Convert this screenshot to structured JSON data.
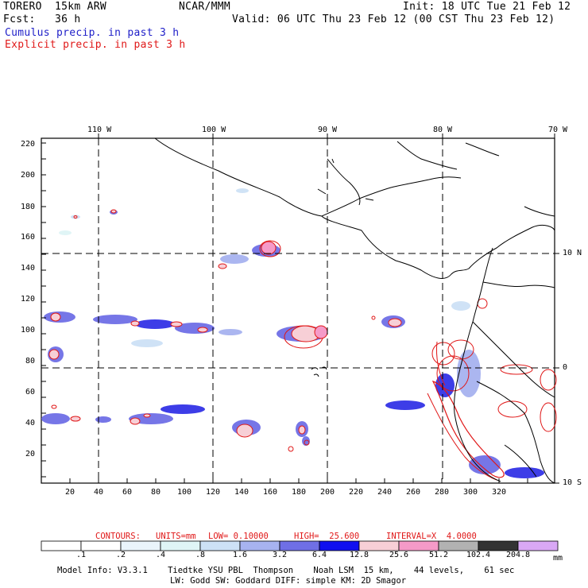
{
  "header": {
    "model": "TORERO  15km ARW",
    "center": "NCAR/MMM",
    "init": "Init: 18 UTC Tue 21 Feb 12",
    "fcst": "Fcst:   36 h",
    "valid": "Valid: 06 UTC Thu 23 Feb 12 (00 CST Thu 23 Feb 12)",
    "field1": "Cumulus precip. in past 3 h",
    "field2": "Explicit precip. in past 3 h"
  },
  "axes": {
    "top_lon": [
      "110 W",
      "100 W",
      "90 W",
      "80 W",
      "70 W"
    ],
    "right_lat": [
      "10 N",
      "0",
      "10 S"
    ],
    "y_ticks": [
      "220",
      "200",
      "180",
      "160",
      "140",
      "120",
      "100",
      "80",
      "60",
      "40",
      "20"
    ],
    "x_ticks": [
      "20",
      "40",
      "60",
      "80",
      "100",
      "120",
      "140",
      "160",
      "180",
      "200",
      "220",
      "240",
      "260",
      "280",
      "300",
      "320"
    ]
  },
  "contours": {
    "label": "CONTOURS:",
    "units": "UNITS=mm",
    "low": "LOW= 0.10000",
    "high": "HIGH=  25.600",
    "interval": "INTERVAL=X  4.0000"
  },
  "colorbar": {
    "labels": [
      ".1",
      ".2",
      ".4",
      ".8",
      "1.6",
      "3.2",
      "6.4",
      "12.8",
      "25.6",
      "51.2",
      "102.4",
      "204.8"
    ],
    "unit": "mm",
    "colors": [
      "#ffffff",
      "#ffffff",
      "#eaf4fb",
      "#dff5f6",
      "#cde1f6",
      "#a7b3f0",
      "#6f6fe6",
      "#3333e6",
      "#1010f0",
      "#f7cfd6",
      "#f59ac8",
      "#b2b2b2",
      "#333333",
      "#d9a8f5"
    ]
  },
  "footer": {
    "line1": "Model Info: V3.3.1    Tiedtke YSU PBL  Thompson    Noah LSM  15 km,    44 levels,    61 sec",
    "line2": "LW: Godd SW: Goddard DIFF: simple KM: 2D Smagor"
  }
}
